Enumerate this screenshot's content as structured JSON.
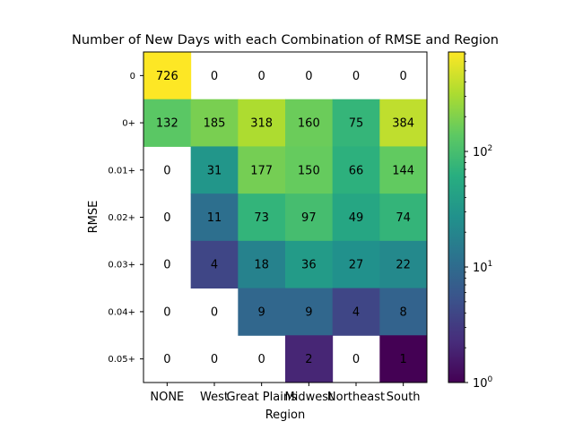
{
  "chart_data": {
    "type": "heatmap",
    "title": "Number of New Days with each Combination of RMSE and Region",
    "xlabel": "Region",
    "ylabel": "RMSE",
    "x_categories": [
      "NONE",
      "West",
      "Great Plains",
      "Midwest",
      "Northeast",
      "South"
    ],
    "y_categories": [
      "0",
      "0+",
      "0.01+",
      "0.02+",
      "0.03+",
      "0.04+",
      "0.05+"
    ],
    "values": [
      [
        726,
        0,
        0,
        0,
        0,
        0
      ],
      [
        132,
        185,
        318,
        160,
        75,
        384
      ],
      [
        0,
        31,
        177,
        150,
        66,
        144
      ],
      [
        0,
        11,
        73,
        97,
        49,
        74
      ],
      [
        0,
        4,
        18,
        36,
        27,
        22
      ],
      [
        0,
        0,
        9,
        9,
        4,
        8
      ],
      [
        0,
        0,
        0,
        2,
        0,
        1
      ]
    ],
    "zero_cells": "blank",
    "colormap": "viridis",
    "colorbar": {
      "scale": "log",
      "range": [
        1,
        726
      ],
      "tick_values": [
        1,
        10,
        100
      ],
      "tick_labels": [
        "10^0",
        "10^1",
        "10^2"
      ]
    },
    "grid": false
  }
}
